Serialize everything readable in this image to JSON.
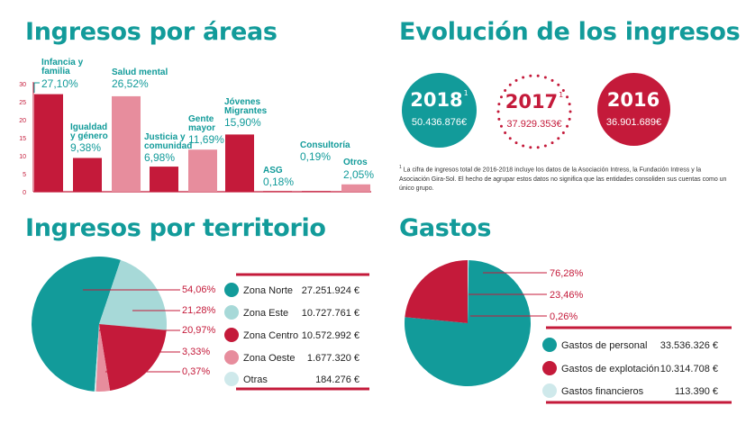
{
  "headings": {
    "areas": "Ingresos por áreas",
    "evolution": "Evolución de los ingresos",
    "territory": "Ingresos por territorio",
    "expenses": "Gastos"
  },
  "colors": {
    "teal": "#129b9a",
    "red": "#c41a3a",
    "pink": "#e78d9d",
    "light_teal": "#a7d9d8",
    "pale_teal": "#cfe9eb"
  },
  "evolution": {
    "items": [
      {
        "year": "2018",
        "sup": "1",
        "amount": "50.436.876€",
        "style": "teal"
      },
      {
        "year": "2017",
        "sup": "1",
        "amount": "37.929.353€",
        "style": "dotted"
      },
      {
        "year": "2016",
        "sup": "",
        "amount": "36.901.689€",
        "style": "red"
      }
    ],
    "footnote_mark": "1",
    "footnote": "La cifra de ingresos total de 2016-2018 incluye los datos de la Asociación Intress, la Fundación Intress y la Asociación Gira-Sol. El hecho de agrupar estos datos no significa que las entidades consoliden sus cuentas como un único grupo."
  },
  "chart_data": [
    {
      "type": "bar",
      "title": "Ingresos por áreas",
      "categories": [
        "Infancia y familia",
        "Igualdad y género",
        "Salud mental",
        "Justicia y comunidad",
        "Gente mayor",
        "Jóvenes Migrantes",
        "ASG",
        "Consultoría",
        "Otros"
      ],
      "values": [
        27.1,
        9.38,
        26.52,
        6.98,
        11.69,
        15.9,
        0.18,
        0.19,
        2.05
      ],
      "value_labels": [
        "27,10%",
        "9,38%",
        "26,52%",
        "6,98%",
        "11,69%",
        "15,90%",
        "0,18%",
        "0,19%",
        "2,05%"
      ],
      "colors": [
        "#c41a3a",
        "#c41a3a",
        "#e78d9d",
        "#c41a3a",
        "#e78d9d",
        "#c41a3a",
        "#c41a3a",
        "#c41a3a",
        "#e78d9d"
      ],
      "yticks": [
        "0",
        "5",
        "10",
        "15",
        "20",
        "25",
        "30"
      ],
      "ylim": [
        0,
        30
      ],
      "grid": false
    },
    {
      "type": "pie",
      "title": "Ingresos por territorio",
      "slices": [
        {
          "label": "Zona Norte",
          "value": 54.06,
          "pct_label": "54,06%",
          "amount": "27.251.924 €",
          "color": "#129b9a"
        },
        {
          "label": "Zona Este",
          "value": 21.28,
          "pct_label": "21,28%",
          "amount": "10.727.761 €",
          "color": "#a7d9d8"
        },
        {
          "label": "Zona Centro",
          "value": 20.97,
          "pct_label": "20,97%",
          "amount": "10.572.992 €",
          "color": "#c41a3a"
        },
        {
          "label": "Zona Oeste",
          "value": 3.33,
          "pct_label": "3,33%",
          "amount": "1.677.320 €",
          "color": "#e78d9d"
        },
        {
          "label": "Otras",
          "value": 0.37,
          "pct_label": "0,37%",
          "amount": "184.276 €",
          "color": "#cfe9eb"
        }
      ],
      "legend_placement": "right"
    },
    {
      "type": "pie",
      "title": "Gastos",
      "slices": [
        {
          "label": "Gastos de personal",
          "value": 76.28,
          "pct_label": "76,28%",
          "amount": "33.536.326 €",
          "color": "#129b9a"
        },
        {
          "label": "Gastos de explotación",
          "value": 23.46,
          "pct_label": "23,46%",
          "amount": "10.314.708 €",
          "color": "#c41a3a"
        },
        {
          "label": "Gastos financieros",
          "value": 0.26,
          "pct_label": "0,26%",
          "amount": "113.390 €",
          "color": "#cfe9eb"
        }
      ],
      "legend_placement": "bottom-right"
    }
  ]
}
